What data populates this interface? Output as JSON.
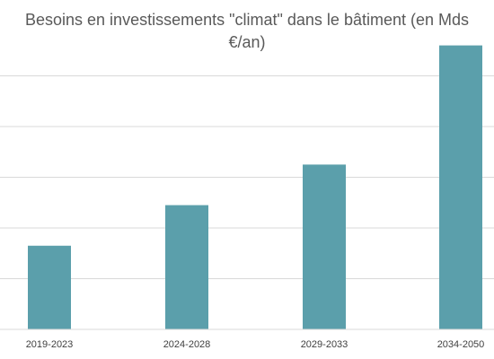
{
  "chart_data": {
    "type": "bar",
    "title": "Besoins en investissements \"climat\" dans le bâtiment (en Mds\n€/an)",
    "xlabel": "",
    "ylabel": "",
    "categories": [
      "2019-2023",
      "2024-2028",
      "2029-2033",
      "2034-2050"
    ],
    "values": [
      16.5,
      24.5,
      32.5,
      56
    ],
    "ylim": [
      0,
      60
    ],
    "grid": true,
    "legend": "none",
    "colors": {
      "bar": "#5b9fab",
      "grid": "#d9d9d9",
      "axis": "#d9d9d9",
      "text": "#404040",
      "title": "#595959"
    }
  }
}
